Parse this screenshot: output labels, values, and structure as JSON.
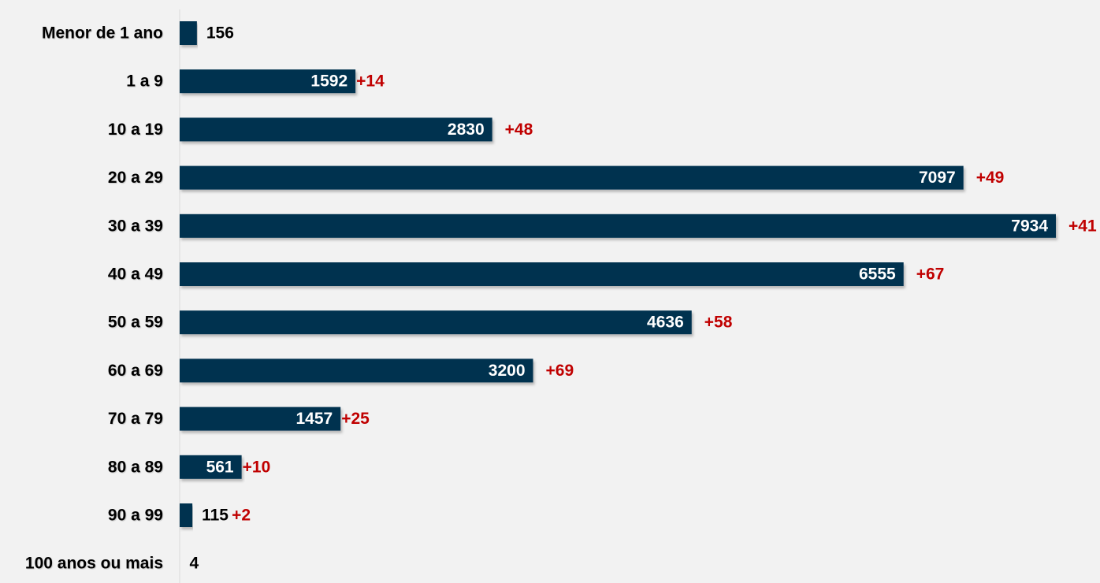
{
  "chart_data": {
    "type": "bar",
    "orientation": "horizontal",
    "title": "",
    "xlabel": "",
    "ylabel": "",
    "categories": [
      "Menor de 1 ano",
      "1 a 9",
      "10 a 19",
      "20 a 29",
      "30 a 39",
      "40 a 49",
      "50 a 59",
      "60 a 69",
      "70 a 79",
      "80 a 89",
      "90 a 99",
      "100 anos ou mais"
    ],
    "values": [
      156,
      1592,
      2830,
      7097,
      7934,
      6555,
      4636,
      3200,
      1457,
      561,
      115,
      4
    ],
    "increments": [
      "",
      "+14",
      "+48",
      "+49",
      "+41",
      "+67",
      "+58",
      "+69",
      "+25",
      "+10",
      "+2",
      ""
    ],
    "xlim": [
      0,
      7934
    ],
    "grid": false,
    "legend": "none"
  },
  "colors": {
    "bar": "#00304f",
    "increment": "#c00000",
    "label_inside": "#ffffff",
    "label_outside": "#000000",
    "axis": "#d9d9d9"
  }
}
